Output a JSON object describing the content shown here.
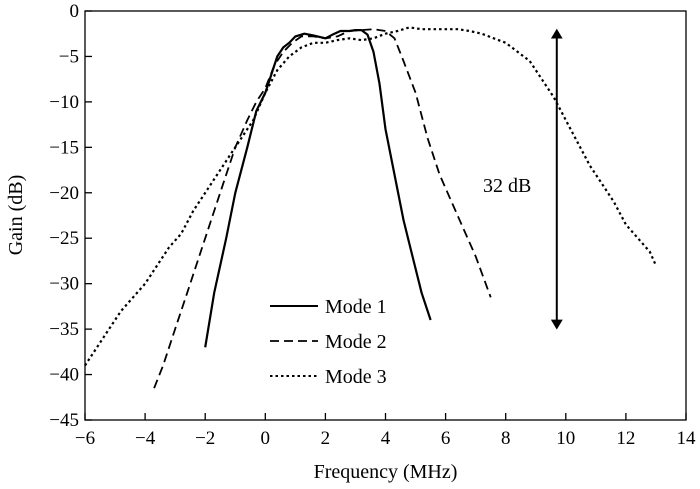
{
  "chart_data": {
    "type": "line",
    "title": "",
    "xlabel": "Frequency (MHz)",
    "ylabel": "Gain (dB)",
    "xlim": [
      -6,
      14
    ],
    "ylim": [
      -45,
      0
    ],
    "xticks": [
      -6,
      -4,
      -2,
      0,
      2,
      4,
      6,
      8,
      10,
      12,
      14
    ],
    "yticks": [
      0,
      -5,
      -10,
      -15,
      -20,
      -25,
      -30,
      -35,
      -40,
      -45
    ],
    "xtick_labels": [
      "−6",
      "−4",
      "−2",
      "0",
      "2",
      "4",
      "6",
      "8",
      "10",
      "12",
      "14"
    ],
    "ytick_labels": [
      "0",
      "−5",
      "−10",
      "−15",
      "−20",
      "−25",
      "−30",
      "−35",
      "−40",
      "−45"
    ],
    "grid": false,
    "legend_position": "bottom-center",
    "series": [
      {
        "name": "Mode 1",
        "style": "solid",
        "x": [
          -2.0,
          -1.7,
          -1.3,
          -1.0,
          -0.6,
          -0.3,
          0.0,
          0.2,
          0.4,
          0.6,
          0.8,
          1.0,
          1.3,
          1.6,
          2.0,
          2.3,
          2.5,
          2.8,
          3.0,
          3.2,
          3.4,
          3.6,
          3.8,
          4.0,
          4.3,
          4.6,
          4.9,
          5.2,
          5.5
        ],
        "y": [
          -37,
          -31,
          -25,
          -20,
          -15,
          -11,
          -9,
          -7,
          -5,
          -4,
          -3.5,
          -2.8,
          -2.5,
          -2.7,
          -3,
          -2.5,
          -2.2,
          -2.2,
          -2.1,
          -2.1,
          -2.6,
          -4.5,
          -8,
          -13,
          -18,
          -23,
          -27,
          -31,
          -34
        ]
      },
      {
        "name": "Mode 2",
        "style": "dashed",
        "x": [
          -3.7,
          -3.4,
          -3.0,
          -2.6,
          -2.2,
          -1.8,
          -1.4,
          -1.0,
          -0.6,
          -0.3,
          0.0,
          0.3,
          0.6,
          0.9,
          1.2,
          1.6,
          2.0,
          2.4,
          2.8,
          3.2,
          3.6,
          4.0,
          4.3,
          4.6,
          5.0,
          5.4,
          5.8,
          6.2,
          6.6,
          7.0,
          7.5
        ],
        "y": [
          -41.5,
          -39,
          -35,
          -31,
          -27,
          -23,
          -19,
          -15,
          -12,
          -10,
          -8.5,
          -6,
          -4.5,
          -3.5,
          -2.8,
          -2.8,
          -3,
          -2.8,
          -2.2,
          -2.1,
          -2,
          -2.2,
          -3,
          -5.5,
          -9,
          -14,
          -18,
          -21,
          -24,
          -27,
          -31.5
        ]
      },
      {
        "name": "Mode 3",
        "style": "dotted",
        "x": [
          -6.0,
          -5.6,
          -5.2,
          -4.8,
          -4.4,
          -4.0,
          -3.6,
          -3.2,
          -2.8,
          -2.4,
          -2.0,
          -1.6,
          -1.2,
          -0.8,
          -0.4,
          0.0,
          0.4,
          0.8,
          1.2,
          1.6,
          2.0,
          2.4,
          2.8,
          3.2,
          3.6,
          4.0,
          4.4,
          4.8,
          5.2,
          5.6,
          6.0,
          6.4,
          6.8,
          7.2,
          7.6,
          8.0,
          8.4,
          8.8,
          9.2,
          9.6,
          10.0,
          10.4,
          10.8,
          11.2,
          11.6,
          12.0,
          12.4,
          12.8,
          13.0
        ],
        "y": [
          -39,
          -37,
          -35,
          -33,
          -31.5,
          -30,
          -28,
          -26,
          -24.5,
          -22,
          -20,
          -18,
          -16,
          -14,
          -12,
          -9,
          -6.5,
          -5,
          -4,
          -3.5,
          -3.5,
          -3.2,
          -3,
          -3.2,
          -3,
          -2.5,
          -2.2,
          -1.8,
          -2,
          -2,
          -2,
          -2,
          -2.2,
          -2.5,
          -3,
          -3.5,
          -4.5,
          -5.5,
          -7.5,
          -9.5,
          -12,
          -14.5,
          -17,
          -19,
          -21,
          -23.5,
          -25,
          -26.5,
          -28
        ]
      }
    ],
    "annotation": {
      "label": "32 dB",
      "x": 9.7,
      "y_top": -2.5,
      "y_bottom": -34.5
    }
  }
}
